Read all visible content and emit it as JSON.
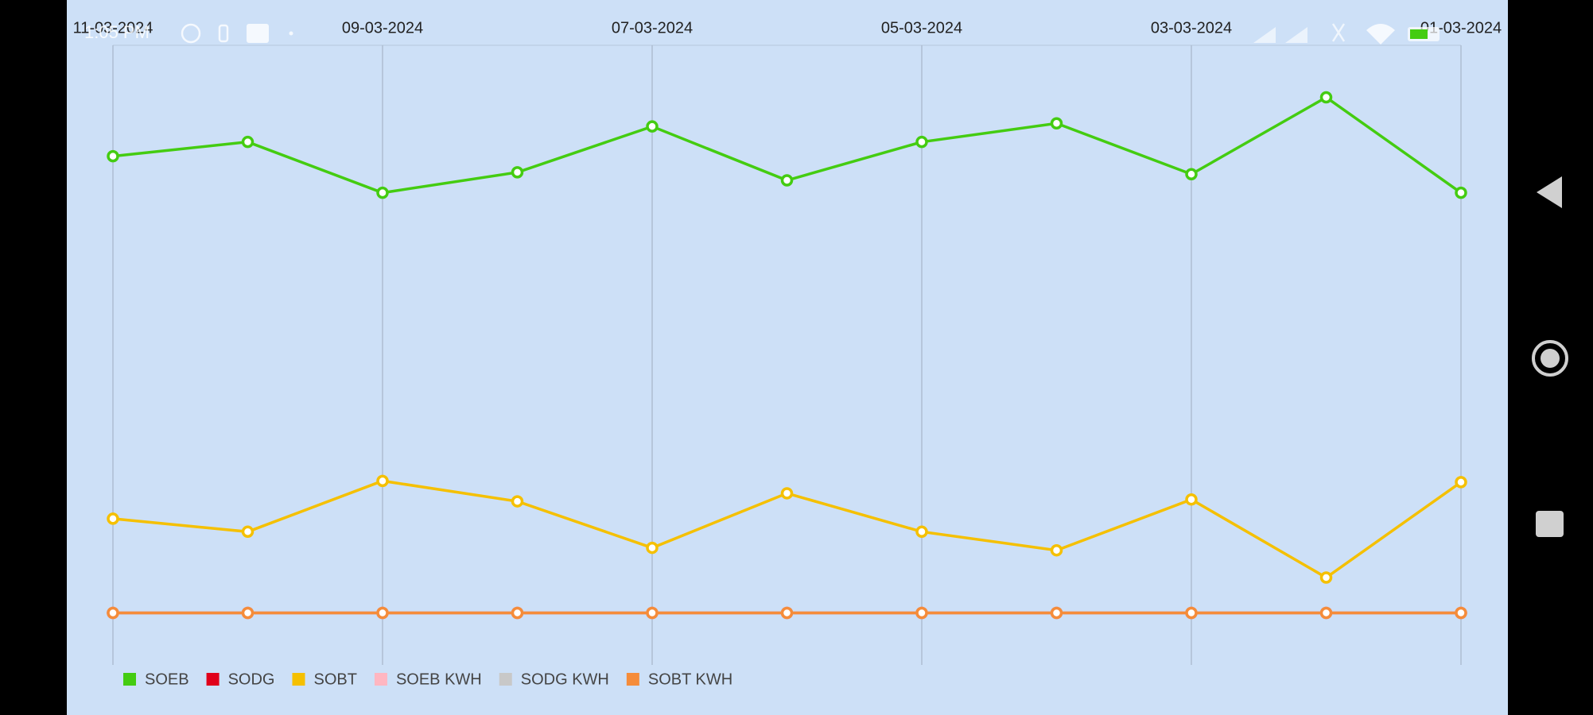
{
  "status_bar": {
    "time": "1:05 PM"
  },
  "chart_data": {
    "type": "line",
    "categories": [
      "11-03-2024",
      null,
      "09-03-2024",
      null,
      "07-03-2024",
      null,
      "05-03-2024",
      null,
      "03-03-2024",
      null,
      "01-03-2024"
    ],
    "ylim": [
      0,
      100
    ],
    "grid": true,
    "legend": "bottom-left",
    "series": [
      {
        "name": "SOEB",
        "color": "#44cc11",
        "values": [
          82.1,
          84.4,
          76.2,
          79.5,
          86.9,
          78.2,
          84.4,
          87.4,
          79.2,
          91.6,
          76.2
        ]
      },
      {
        "name": "SODG",
        "color": "#e0001a",
        "values": [
          8.4,
          8.4,
          8.4,
          8.4,
          8.4,
          8.4,
          8.4,
          8.4,
          8.4,
          8.4,
          8.4
        ]
      },
      {
        "name": "SOBT",
        "color": "#f5c000",
        "values": [
          23.6,
          21.5,
          29.7,
          26.4,
          18.9,
          27.7,
          21.5,
          18.5,
          26.7,
          14.1,
          29.5
        ]
      },
      {
        "name": "SOEB KWH",
        "color": "#ffb6c1",
        "values": [
          8.4,
          8.4,
          8.4,
          8.4,
          8.4,
          8.4,
          8.4,
          8.4,
          8.4,
          8.4,
          8.4
        ]
      },
      {
        "name": "SODG KWH",
        "color": "#c8c8c8",
        "values": [
          8.4,
          8.4,
          8.4,
          8.4,
          8.4,
          8.4,
          8.4,
          8.4,
          8.4,
          8.4,
          8.4
        ]
      },
      {
        "name": "SOBT KWH",
        "color": "#f58c3a",
        "values": [
          8.4,
          8.4,
          8.4,
          8.4,
          8.4,
          8.4,
          8.4,
          8.4,
          8.4,
          8.4,
          8.4
        ]
      }
    ]
  }
}
